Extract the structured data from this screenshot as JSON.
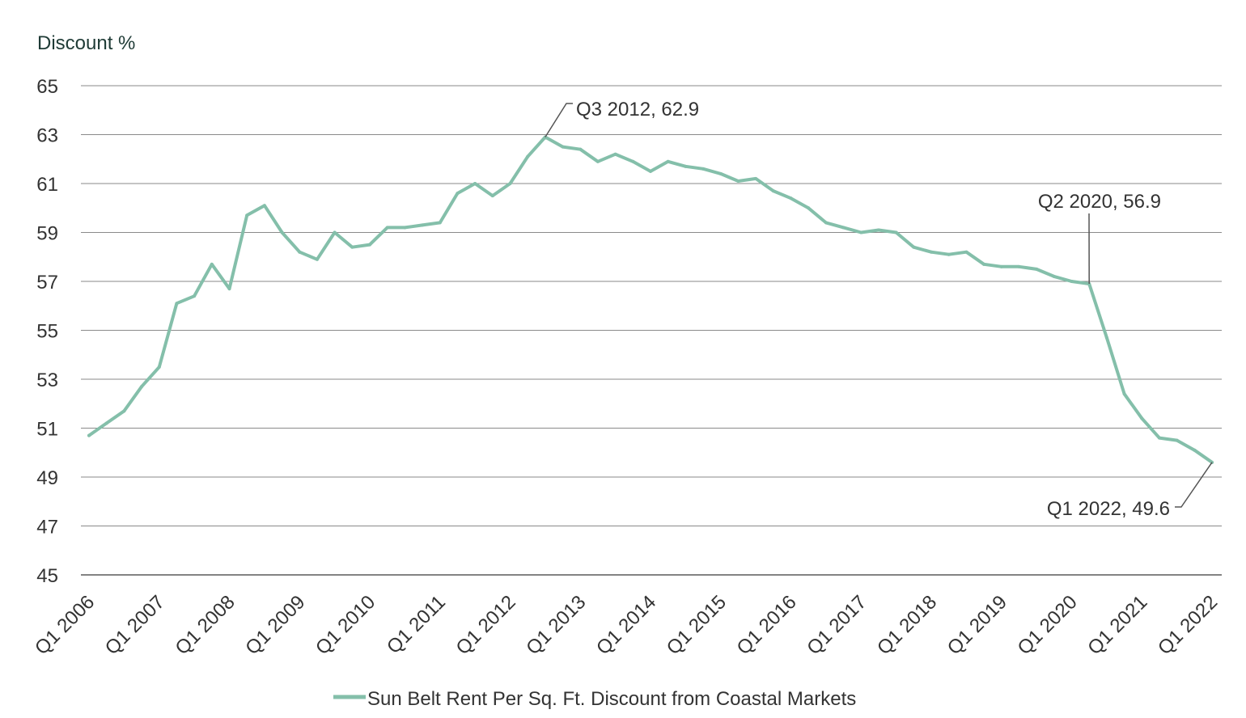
{
  "chart_data": {
    "type": "line",
    "ylabel": "Discount %",
    "xlabel": "",
    "ylim": [
      45,
      65
    ],
    "yticks": [
      "65",
      "63",
      "61",
      "59",
      "57",
      "55",
      "53",
      "51",
      "49",
      "47",
      "45"
    ],
    "xtick_labels": [
      "Q1 2006",
      "Q1 2007",
      "Q1 2008",
      "Q1 2009",
      "Q1 2010",
      "Q1 2011",
      "Q1 2012",
      "Q1 2013",
      "Q1 2014",
      "Q1 2015",
      "Q1 2016",
      "Q1 2017",
      "Q1 2018",
      "Q1 2019",
      "Q1 2020",
      "Q1 2021",
      "Q1 2022"
    ],
    "grid": true,
    "legend_position": "bottom-center",
    "series": [
      {
        "name": "Sun Belt Rent Per Sq. Ft. Discount from Coastal Markets",
        "color": "#84bfaa",
        "x": [
          "Q1 2006",
          "Q2 2006",
          "Q3 2006",
          "Q4 2006",
          "Q1 2007",
          "Q2 2007",
          "Q3 2007",
          "Q4 2007",
          "Q1 2008",
          "Q2 2008",
          "Q3 2008",
          "Q4 2008",
          "Q1 2009",
          "Q2 2009",
          "Q3 2009",
          "Q4 2009",
          "Q1 2010",
          "Q2 2010",
          "Q3 2010",
          "Q4 2010",
          "Q1 2011",
          "Q2 2011",
          "Q3 2011",
          "Q4 2011",
          "Q1 2012",
          "Q2 2012",
          "Q3 2012",
          "Q4 2012",
          "Q1 2013",
          "Q2 2013",
          "Q3 2013",
          "Q4 2013",
          "Q1 2014",
          "Q2 2014",
          "Q3 2014",
          "Q4 2014",
          "Q1 2015",
          "Q2 2015",
          "Q3 2015",
          "Q4 2015",
          "Q1 2016",
          "Q2 2016",
          "Q3 2016",
          "Q4 2016",
          "Q1 2017",
          "Q2 2017",
          "Q3 2017",
          "Q4 2017",
          "Q1 2018",
          "Q2 2018",
          "Q3 2018",
          "Q4 2018",
          "Q1 2019",
          "Q2 2019",
          "Q3 2019",
          "Q4 2019",
          "Q1 2020",
          "Q2 2020",
          "Q3 2020",
          "Q4 2020",
          "Q1 2021",
          "Q2 2021",
          "Q3 2021",
          "Q4 2021",
          "Q1 2022"
        ],
        "values": [
          50.7,
          51.2,
          51.7,
          52.7,
          53.5,
          56.1,
          56.4,
          57.7,
          56.7,
          59.7,
          60.1,
          59.0,
          58.2,
          57.9,
          59.0,
          58.4,
          58.5,
          59.2,
          59.2,
          59.3,
          59.4,
          60.6,
          61.0,
          60.5,
          61.0,
          62.1,
          62.9,
          62.5,
          62.4,
          61.9,
          62.2,
          61.9,
          61.5,
          61.9,
          61.7,
          61.6,
          61.4,
          61.1,
          61.2,
          60.7,
          60.4,
          60.0,
          59.4,
          59.2,
          59.0,
          59.1,
          59.0,
          58.4,
          58.2,
          58.1,
          58.2,
          57.7,
          57.6,
          57.6,
          57.5,
          57.2,
          57.0,
          56.9,
          54.7,
          52.4,
          51.4,
          50.6,
          50.5,
          50.1,
          49.6
        ]
      }
    ],
    "annotations": [
      {
        "text": "Q3 2012,  62.9",
        "x": "Q3 2012",
        "y": 62.9
      },
      {
        "text": "Q2 2020,  56.9",
        "x": "Q2 2020",
        "y": 56.9
      },
      {
        "text": "Q1 2022,  49.6",
        "x": "Q1 2022",
        "y": 49.6
      }
    ],
    "legend_label": "Sun Belt Rent Per Sq. Ft. Discount from Coastal Markets"
  }
}
